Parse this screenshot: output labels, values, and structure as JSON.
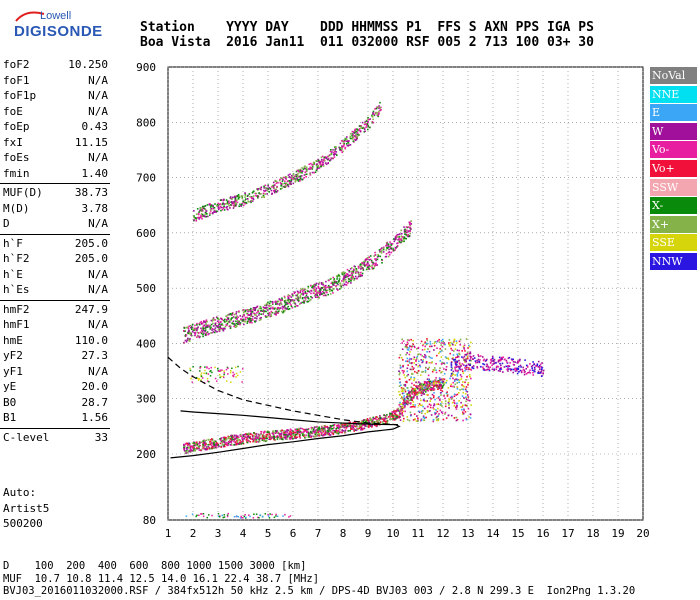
{
  "logo": {
    "line1": "Lowell",
    "line2": "DIGISONDE"
  },
  "header": {
    "line1": "Station    YYYY DAY    DDD HHMMSS P1  FFS S AXN PPS IGA PS",
    "line2": "Boa Vista  2016 Jan11  011 032000 RSF 005 2 713 100 03+ 30"
  },
  "params": {
    "group1": [
      {
        "k": "foF2",
        "v": "10.250"
      },
      {
        "k": "foF1",
        "v": "N/A"
      },
      {
        "k": "foF1p",
        "v": "N/A"
      },
      {
        "k": "foE",
        "v": "N/A"
      },
      {
        "k": "foEp",
        "v": "0.43"
      },
      {
        "k": "fxI",
        "v": "11.15"
      },
      {
        "k": "foEs",
        "v": "N/A"
      },
      {
        "k": "fmin",
        "v": "1.40"
      }
    ],
    "group2": [
      {
        "k": "MUF(D)",
        "v": "38.73"
      },
      {
        "k": "M(D)",
        "v": "3.78"
      },
      {
        "k": "D",
        "v": "N/A"
      }
    ],
    "group3": [
      {
        "k": "h`F",
        "v": "205.0"
      },
      {
        "k": "h`F2",
        "v": "205.0"
      },
      {
        "k": "h`E",
        "v": "N/A"
      },
      {
        "k": "h`Es",
        "v": "N/A"
      }
    ],
    "group4": [
      {
        "k": "hmF2",
        "v": "247.9"
      },
      {
        "k": "hmF1",
        "v": "N/A"
      },
      {
        "k": "hmE",
        "v": "110.0"
      },
      {
        "k": "yF2",
        "v": "27.3"
      },
      {
        "k": "yF1",
        "v": "N/A"
      },
      {
        "k": "yE",
        "v": "20.0"
      },
      {
        "k": "B0",
        "v": "28.7"
      },
      {
        "k": "B1",
        "v": "1.56"
      }
    ],
    "group5": [
      {
        "k": "C-level",
        "v": "33"
      }
    ]
  },
  "auto": {
    "line1": "Auto:",
    "line2": "Artist5",
    "line3": "500200"
  },
  "legend": [
    {
      "label": "NoVal",
      "color": "#808080"
    },
    {
      "label": "NNE",
      "color": "#00e0f0"
    },
    {
      "label": "E",
      "color": "#3aa6f5"
    },
    {
      "label": "W",
      "color": "#a0109a"
    },
    {
      "label": "Vo-",
      "color": "#e81ea0"
    },
    {
      "label": "Vo+",
      "color": "#f0103a"
    },
    {
      "label": "SSW",
      "color": "#f4a6b0"
    },
    {
      "label": "X-",
      "color": "#0a8a0a"
    },
    {
      "label": "X+",
      "color": "#86b24a"
    },
    {
      "label": "SSE",
      "color": "#d6d40a"
    },
    {
      "label": "NNW",
      "color": "#2a16e0"
    }
  ],
  "footer": {
    "line1": "D    100  200  400  600  800 1000 1500 3000 [km]",
    "line2": "MUF  10.7 10.8 11.4 12.5 14.0 16.1 22.4 38.7 [MHz]",
    "line3": "BVJ03_2016011032000.RSF / 384fx512h 50 kHz 2.5 km / DPS-4D BVJ03 003 / 2.8 N 299.3 E  Ion2Png 1.3.20"
  },
  "chart_data": {
    "type": "scatter",
    "x_ticks": [
      1,
      2,
      3,
      4,
      5,
      6,
      7,
      8,
      9,
      10,
      11,
      12,
      13,
      14,
      15,
      16,
      17,
      18,
      19,
      20
    ],
    "y_ticks": [
      80,
      200,
      300,
      400,
      500,
      600,
      700,
      800,
      900
    ],
    "xlim": [
      1,
      20
    ],
    "ylim": [
      80,
      900
    ],
    "grid": true,
    "legend_position": "right",
    "series": [
      {
        "name": "X-",
        "trace": [
          [
            1.6,
            211
          ],
          [
            2.5,
            218
          ],
          [
            3.5,
            226
          ],
          [
            4.5,
            232
          ],
          [
            5.5,
            236
          ],
          [
            6.5,
            240
          ],
          [
            7.5,
            245
          ],
          [
            8.5,
            252
          ],
          [
            9.5,
            262
          ],
          [
            10.2,
            275
          ],
          [
            10.5,
            300
          ],
          [
            11,
            320
          ],
          [
            12,
            330
          ]
        ]
      },
      {
        "name": "Vo-",
        "trace": [
          [
            1.6,
            416
          ],
          [
            2.5,
            430
          ],
          [
            3.5,
            442
          ],
          [
            4.5,
            455
          ],
          [
            5.5,
            470
          ],
          [
            6.5,
            490
          ],
          [
            7.5,
            505
          ],
          [
            8.5,
            530
          ],
          [
            9.5,
            560
          ],
          [
            10.2,
            590
          ],
          [
            10.7,
            610
          ]
        ]
      },
      {
        "name": "X+",
        "trace": [
          [
            2.0,
            632
          ],
          [
            3.0,
            650
          ],
          [
            4.0,
            662
          ],
          [
            5.0,
            680
          ],
          [
            6.0,
            700
          ],
          [
            7.0,
            725
          ],
          [
            8.0,
            760
          ],
          [
            9.0,
            800
          ],
          [
            9.5,
            830
          ]
        ]
      },
      {
        "name": "W",
        "trace": [
          [
            12.3,
            360
          ],
          [
            13,
            370
          ],
          [
            14,
            365
          ],
          [
            15,
            360
          ],
          [
            16,
            355
          ]
        ]
      },
      {
        "name": "profile_solid",
        "trace": [
          [
            1.1,
            193
          ],
          [
            2,
            197
          ],
          [
            3,
            203
          ],
          [
            4,
            210
          ],
          [
            5,
            217
          ],
          [
            6,
            222
          ],
          [
            7,
            228
          ],
          [
            8,
            233
          ],
          [
            9,
            240
          ],
          [
            10,
            245
          ],
          [
            10.25,
            250
          ],
          [
            10.1,
            253
          ],
          [
            9,
            254
          ],
          [
            8,
            256
          ],
          [
            7,
            258
          ],
          [
            6,
            262
          ],
          [
            5,
            266
          ],
          [
            4,
            270
          ],
          [
            3,
            273
          ],
          [
            2,
            276
          ],
          [
            1.5,
            278
          ]
        ]
      },
      {
        "name": "profile_dashed",
        "trace": [
          [
            1,
            375
          ],
          [
            1.5,
            355
          ],
          [
            2,
            340
          ],
          [
            2.5,
            327
          ],
          [
            3,
            315
          ],
          [
            4,
            298
          ],
          [
            5,
            288
          ],
          [
            6,
            278
          ],
          [
            7,
            270
          ],
          [
            8,
            262
          ],
          [
            9,
            256
          ],
          [
            10.2,
            253
          ]
        ]
      }
    ]
  }
}
